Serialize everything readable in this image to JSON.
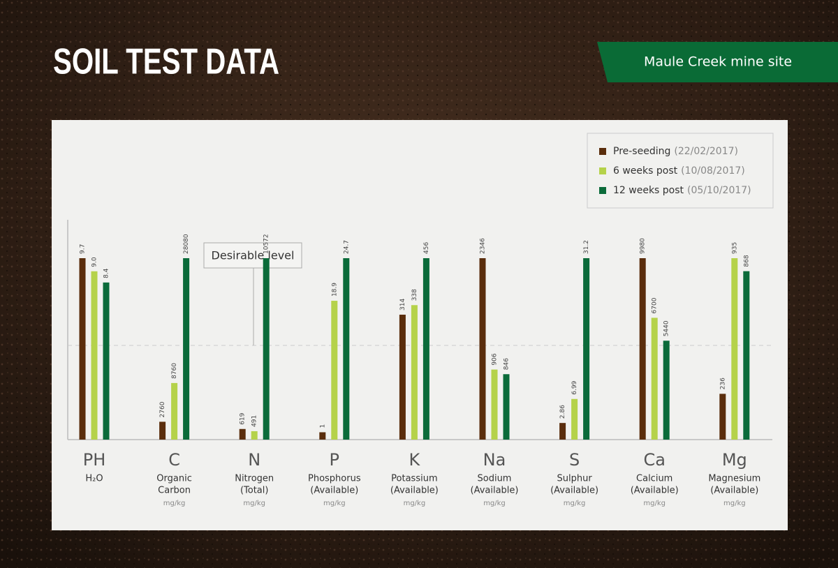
{
  "chart_data": {
    "type": "bar",
    "title": "SOIL TEST DATA",
    "subtitle": "Maule Creek mine site",
    "annotation": "Desirable level",
    "categories": [
      "PH",
      "C",
      "N",
      "P",
      "K",
      "Na",
      "S",
      "Ca",
      "Mg"
    ],
    "category_names": [
      [
        "H₂O"
      ],
      [
        "Organic",
        "Carbon"
      ],
      [
        "Nitrogen",
        "(Total)"
      ],
      [
        "Phosphorus",
        "(Available)"
      ],
      [
        "Potassium",
        "(Available)"
      ],
      [
        "Sodium",
        "(Available)"
      ],
      [
        "Sulphur",
        "(Available)"
      ],
      [
        "Calcium",
        "(Available)"
      ],
      [
        "Magnesium",
        "(Available)"
      ]
    ],
    "category_units": [
      null,
      "mg/kg",
      "mg/kg",
      "mg/kg",
      "mg/kg",
      "mg/kg",
      "mg/kg",
      "mg/kg",
      "mg/kg"
    ],
    "series": [
      {
        "name": "Pre-seeding",
        "date": "(22/02/2017)",
        "color": "#5a2d0c",
        "values": [
          9.7,
          2760,
          619,
          1,
          314,
          2346,
          2.86,
          9980,
          236
        ]
      },
      {
        "name": "6 weeks post",
        "date": "(10/08/2017)",
        "color": "#b5d24a",
        "values": [
          9.0,
          8760,
          491,
          18.9,
          338,
          906,
          6.99,
          6700,
          935
        ],
        "value_labels": [
          "9.0",
          "8760",
          "491",
          "18.9",
          "338",
          "906",
          "6.99",
          "6700",
          "935"
        ]
      },
      {
        "name": "12 weeks post",
        "date": "(05/10/2017)",
        "color": "#0b6b3a",
        "values": [
          8.4,
          28080,
          10572,
          24.7,
          456,
          846,
          31.2,
          5440,
          868
        ]
      }
    ],
    "legend": "upper right"
  }
}
